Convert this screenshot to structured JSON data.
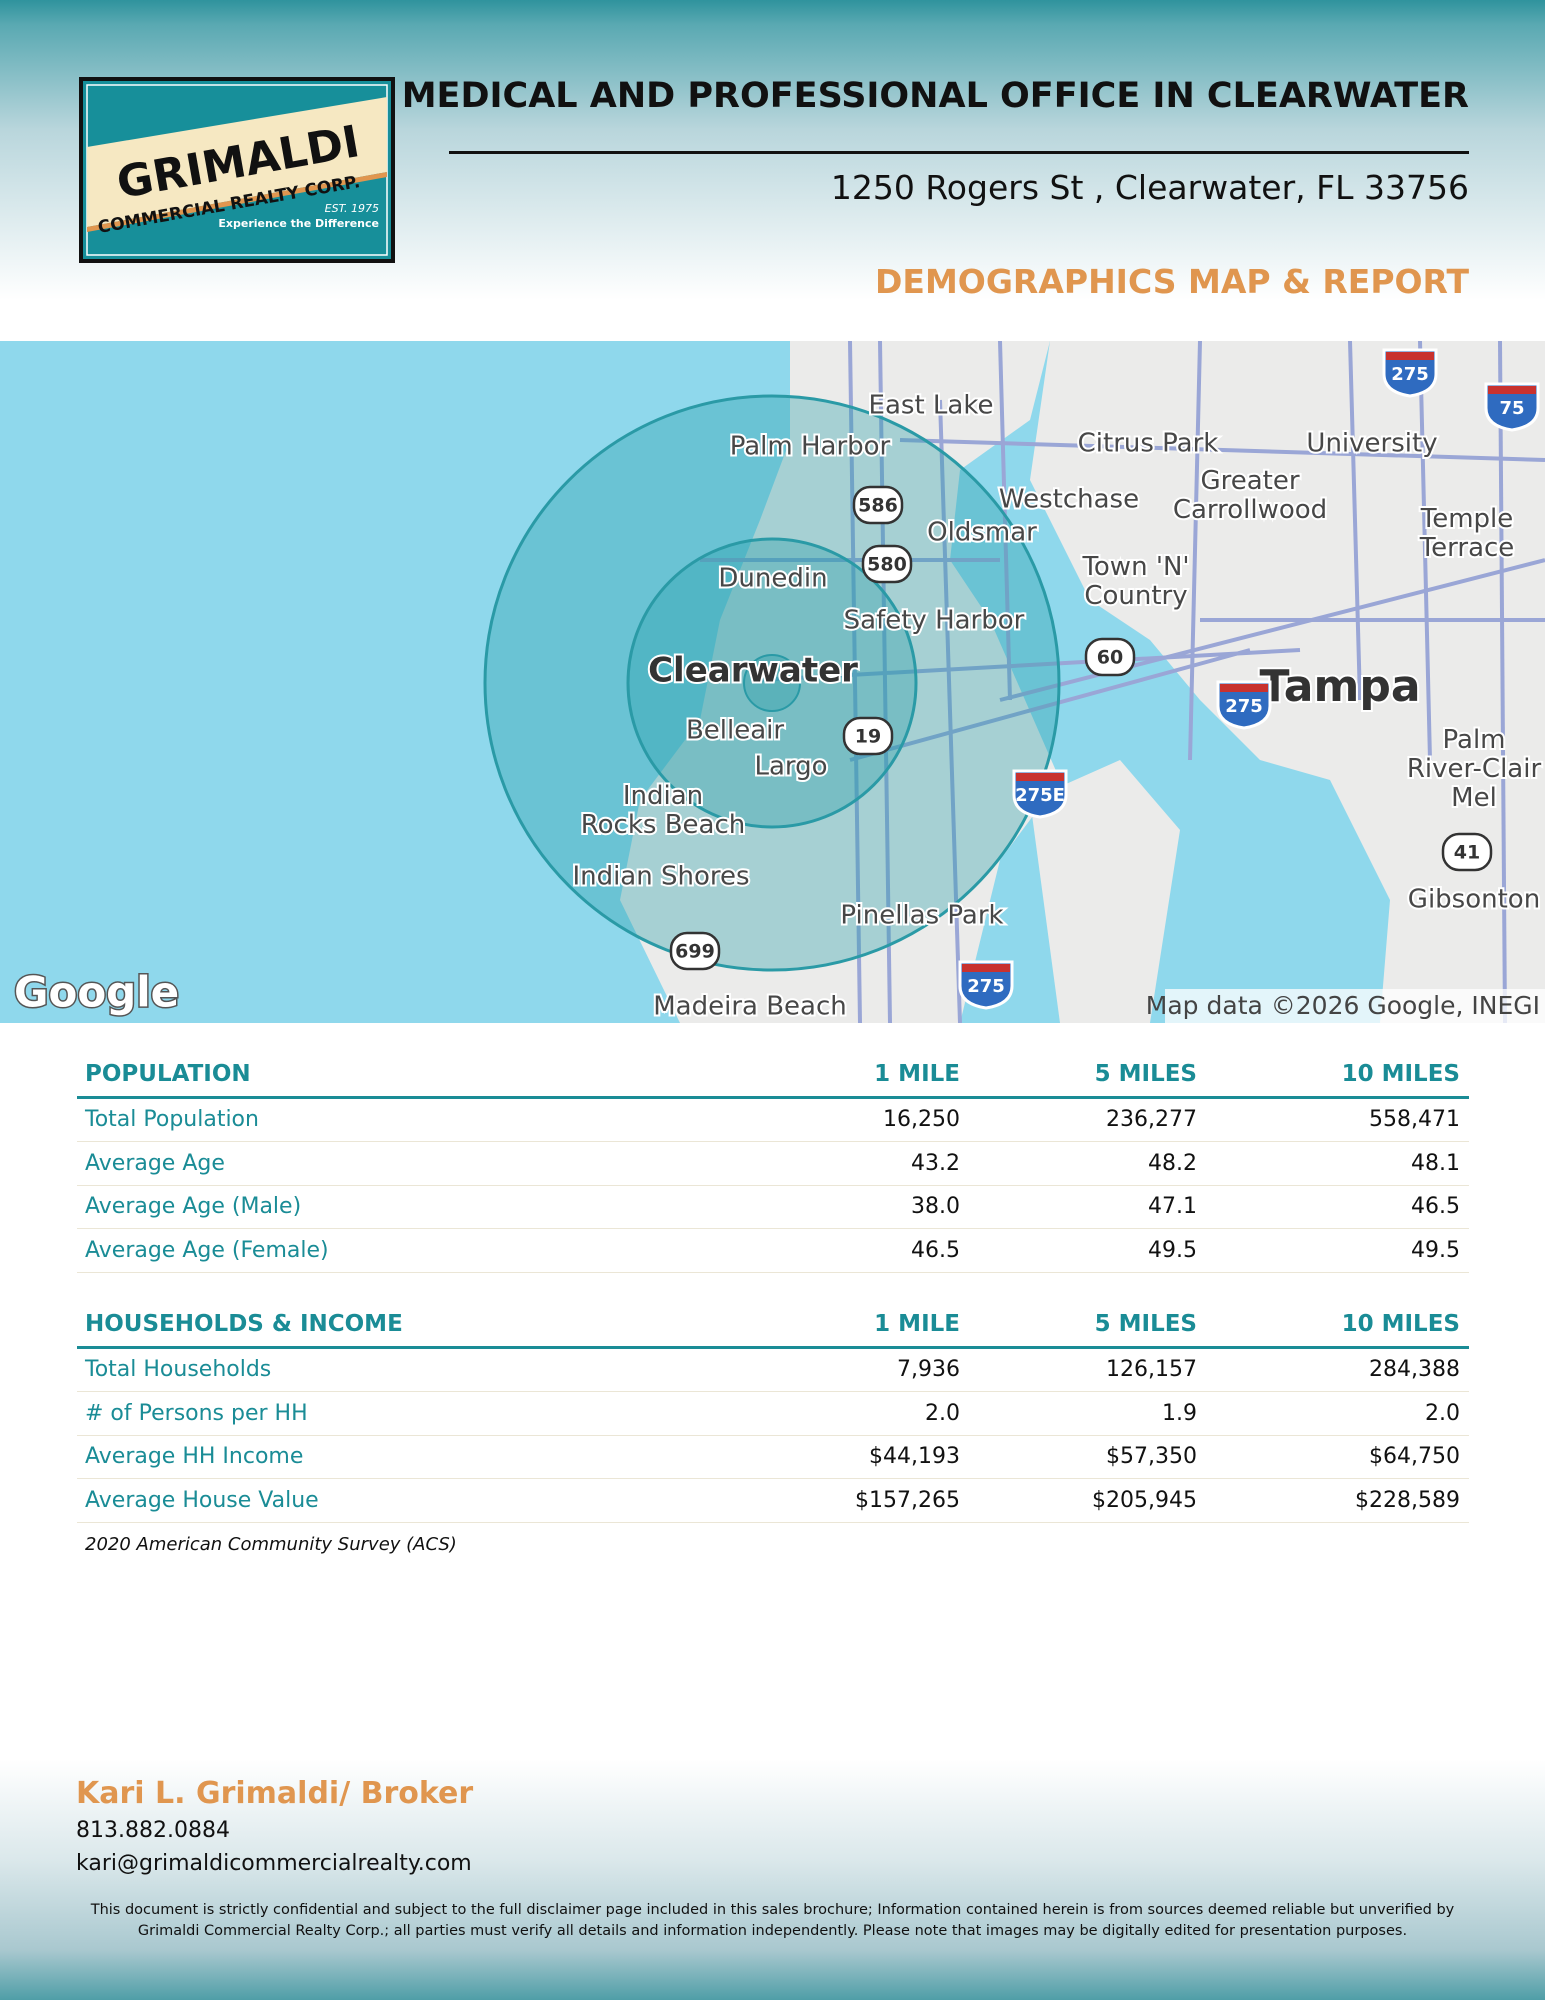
{
  "header": {
    "title": "MEDICAL AND PROFESSIONAL OFFICE IN CLEARWATER",
    "address": "1250 Rogers St , Clearwater, FL 33756",
    "subtitle": "DEMOGRAPHICS MAP & REPORT"
  },
  "logo": {
    "name": "GRIMALDI",
    "company": "COMMERCIAL REALTY CORP.",
    "established": "EST. 1975",
    "tagline": "Experience the Difference"
  },
  "map": {
    "places": [
      "East Lake",
      "Palm Harbor",
      "Citrus Park",
      "University",
      [
        "Greater",
        "Carrollwood"
      ],
      "Westchase",
      "Oldsmar",
      [
        "Temple",
        "Terrace"
      ],
      [
        "Town 'N'",
        "Country"
      ],
      "Dunedin",
      "Safety Harbor",
      "Clearwater",
      "Tampa",
      "Belleair",
      "Largo",
      [
        "Palm",
        "River-Clair",
        "Mel"
      ],
      [
        "Indian",
        "Rocks Beach"
      ],
      "Indian Shores",
      "Pinellas Park",
      "Gibsonton",
      "Madeira Beach"
    ],
    "routes": [
      "586",
      "580",
      "60",
      "19",
      "699",
      "41"
    ],
    "interstates": [
      "275",
      "275E",
      "275",
      "75",
      "275"
    ],
    "brand": "Google",
    "attribution": "Map data ©2026 Google, INEGI"
  },
  "tables": [
    {
      "columns": [
        "POPULATION",
        "1 MILE",
        "5 MILES",
        "10 MILES"
      ],
      "rows": [
        [
          "Total Population",
          "16,250",
          "236,277",
          "558,471"
        ],
        [
          "Average Age",
          "43.2",
          "48.2",
          "48.1"
        ],
        [
          "Average Age (Male)",
          "38.0",
          "47.1",
          "46.5"
        ],
        [
          "Average Age (Female)",
          "46.5",
          "49.5",
          "49.5"
        ]
      ]
    },
    {
      "columns": [
        "HOUSEHOLDS & INCOME",
        "1 MILE",
        "5 MILES",
        "10 MILES"
      ],
      "rows": [
        [
          "Total Households",
          "7,936",
          "126,157",
          "284,388"
        ],
        [
          "# of Persons per HH",
          "2.0",
          "1.9",
          "2.0"
        ],
        [
          "Average HH Income",
          "$44,193",
          "$57,350",
          "$64,750"
        ],
        [
          "Average House Value",
          "$157,265",
          "$205,945",
          "$228,589"
        ]
      ]
    }
  ],
  "note": "2020 American Community Survey (ACS)",
  "contact": {
    "name": "Kari L. Grimaldi/ Broker",
    "phone": "813.882.0884",
    "email": "kari@grimaldicommercialrealty.com"
  },
  "disclaimer": "This document is strictly confidential and subject to the full disclaimer page included in this sales brochure; Information contained herein is from sources deemed reliable but unverified by Grimaldi Commercial Realty Corp.; all parties must verify all details and information independently. Please note that images may be digitally edited for presentation purposes."
}
